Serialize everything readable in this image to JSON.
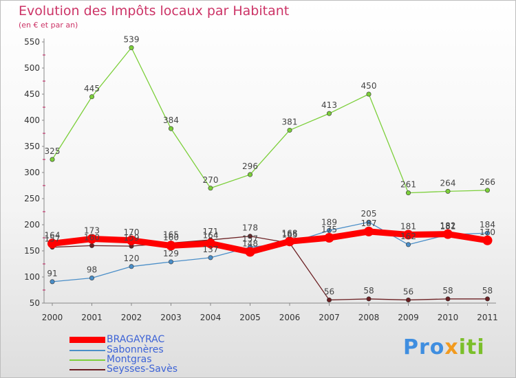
{
  "title": "Evolution des Impôts locaux par Habitant",
  "subtitle": "(en € et par an)",
  "logo": {
    "part1": "Pro",
    "part2": "x",
    "part3": "iti"
  },
  "colors": {
    "title": "#cc3366",
    "legend_text": "#3d63d6",
    "bragayrac": "#ff0000",
    "sabonneres": "#4a8ec8",
    "montgras": "#7ccf3a",
    "seysses": "#6b1f22"
  },
  "chart_data": {
    "type": "line",
    "title": "Evolution des Impôts locaux par Habitant",
    "subtitle": "(en € et par an)",
    "xlabel": "",
    "ylabel": "",
    "categories": [
      "2000",
      "2001",
      "2002",
      "2003",
      "2004",
      "2005",
      "2006",
      "2007",
      "2008",
      "2009",
      "2010",
      "2011"
    ],
    "ylim": [
      50,
      550
    ],
    "yticks": [
      50,
      100,
      150,
      200,
      250,
      300,
      350,
      400,
      450,
      500,
      550
    ],
    "grid": false,
    "legend": "bottom-left",
    "series": [
      {
        "name": "BRAGAYRAC",
        "color": "#ff0000",
        "values": [
          164,
          173,
          170,
          160,
          164,
          148,
          168,
          175,
          187,
          181,
          182,
          170
        ],
        "labels": [
          "164",
          "173",
          "170",
          "160",
          "164",
          "148",
          "168",
          "175",
          "187",
          "181",
          "182",
          "170"
        ]
      },
      {
        "name": "Sabonnères",
        "color": "#4a8ec8",
        "values": [
          91,
          98,
          120,
          129,
          137,
          157,
          165,
          189,
          205,
          162,
          181,
          184
        ],
        "labels": [
          "91",
          "98",
          "120",
          "129",
          "137",
          "157",
          "165",
          "189",
          "205",
          "162",
          "181",
          "184"
        ]
      },
      {
        "name": "Montgras",
        "color": "#7ccf3a",
        "values": [
          325,
          445,
          539,
          384,
          270,
          296,
          381,
          413,
          450,
          261,
          264,
          266
        ],
        "labels": [
          "325",
          "445",
          "539",
          "384",
          "270",
          "296",
          "381",
          "413",
          "450",
          "261",
          "264",
          "266"
        ]
      },
      {
        "name": "Seysses-Savès",
        "color": "#6b1f22",
        "values": [
          157,
          160,
          159,
          165,
          171,
          178,
          165,
          56,
          58,
          56,
          58,
          58
        ],
        "labels": [
          "157",
          "160",
          "159",
          "165",
          "171",
          "178",
          "165",
          "56",
          "58",
          "56",
          "58",
          "58"
        ]
      }
    ]
  }
}
